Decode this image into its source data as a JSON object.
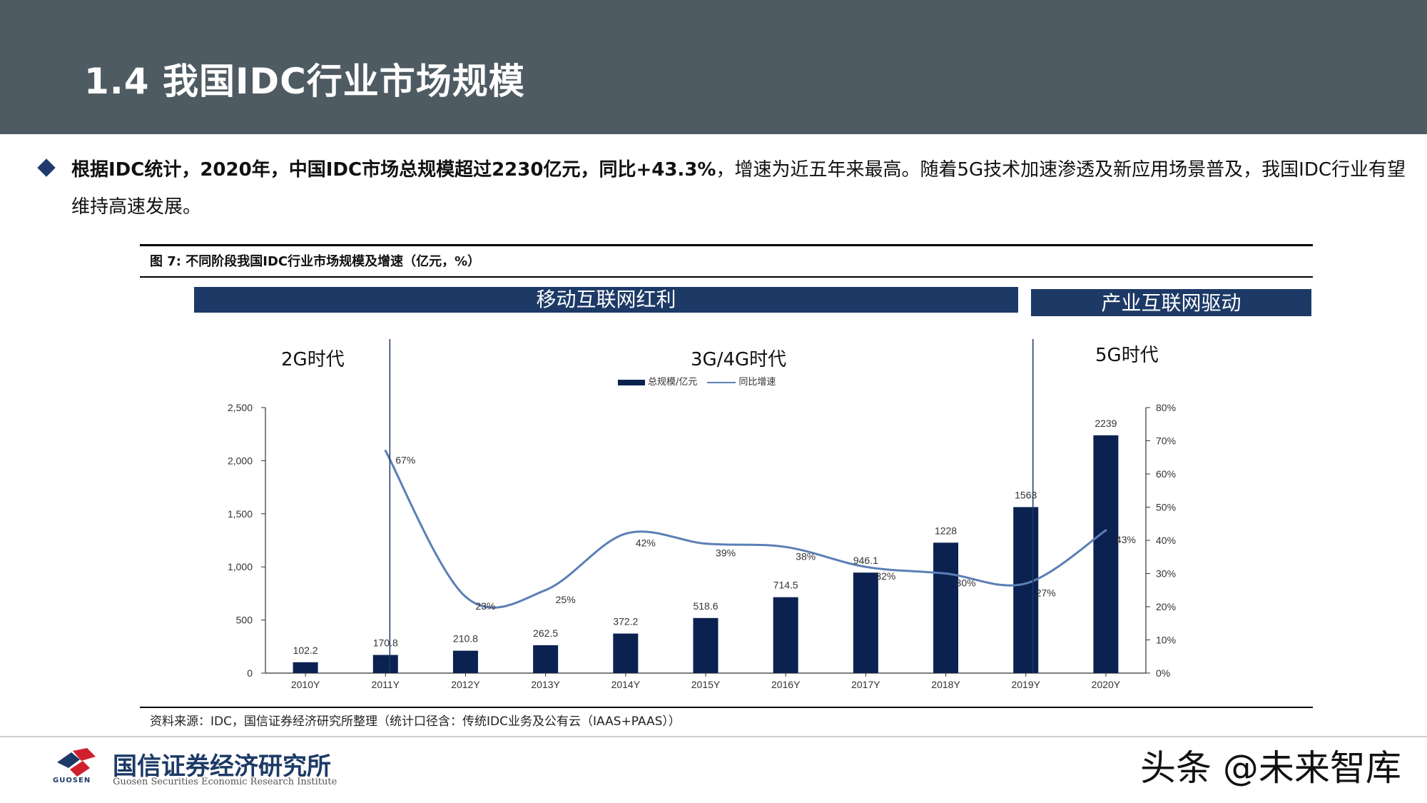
{
  "header": {
    "title": "1.4 我国IDC行业市场规模"
  },
  "bullet": {
    "segments": [
      {
        "text": "根据IDC统计，",
        "bold": true
      },
      {
        "text": "2020年",
        "bold": true
      },
      {
        "text": "，",
        "bold": true
      },
      {
        "text": "中国IDC市场总规模超过",
        "bold": true
      },
      {
        "text": "2230亿元",
        "bold": true
      },
      {
        "text": "，同比",
        "bold": true
      },
      {
        "text": "+43.3%",
        "bold": true
      },
      {
        "text": "，增速为近五年来最高。随着5G技术加速渗透及新应用场景普及，我国IDC行业有望维持高速发展。",
        "bold": false
      }
    ]
  },
  "figure": {
    "caption": "图 7:  不同阶段我国IDC行业市场规模及增速（亿元，%）",
    "banners": {
      "mobile": "移动互联网红利",
      "industry": "产业互联网驱动"
    },
    "eras": {
      "era_2g": "2G时代",
      "era_34g": "3G/4G时代",
      "era_5g": "5G时代"
    },
    "source": "资料来源：IDC，国信证券经济研究所整理（统计口径含：传统IDC业务及公有云（IAAS+PAAS））"
  },
  "chart_data": {
    "type": "bar",
    "categories": [
      "2010Y",
      "2011Y",
      "2012Y",
      "2013Y",
      "2014Y",
      "2015Y",
      "2016Y",
      "2017Y",
      "2018Y",
      "2019Y",
      "2020Y"
    ],
    "series": [
      {
        "name": "总规模/亿元",
        "kind": "bar",
        "axis": "left",
        "values": [
          102.2,
          170.8,
          210.8,
          262.5,
          372.2,
          518.6,
          714.5,
          946.1,
          1228,
          1563,
          2239
        ],
        "labels": [
          "102.2",
          "170.8",
          "210.8",
          "262.5",
          "372.2",
          "518.6",
          "714.5",
          "946.1",
          "1228",
          "1563",
          "2239"
        ],
        "color": "#0b2150"
      },
      {
        "name": "同比增速",
        "kind": "line",
        "axis": "right",
        "values": [
          null,
          67,
          23,
          25,
          42,
          39,
          38,
          32,
          30,
          27,
          43
        ],
        "labels": [
          "",
          "67%",
          "23%",
          "25%",
          "42%",
          "39%",
          "38%",
          "32%",
          "30%",
          "27%",
          "43%"
        ],
        "color": "#5b7fb5"
      }
    ],
    "y_left": {
      "min": 0,
      "max": 2500,
      "ticks": [
        "0",
        "500",
        "1,000",
        "1,500",
        "2,000",
        "2,500"
      ]
    },
    "y_right": {
      "min": 0,
      "max": 80,
      "ticks": [
        "0%",
        "10%",
        "20%",
        "30%",
        "40%",
        "50%",
        "60%",
        "70%",
        "80%"
      ]
    },
    "grid": false,
    "legend_position": "top-center",
    "era_dividers_after": [
      "2011Y",
      "2019Y"
    ]
  },
  "footer": {
    "logo_cn": "国信证券经济研究所",
    "logo_en": "Guosen Securities Economic Research Institute",
    "logo_short": "GUOSEN",
    "watermark": "头条 @未来智库"
  }
}
